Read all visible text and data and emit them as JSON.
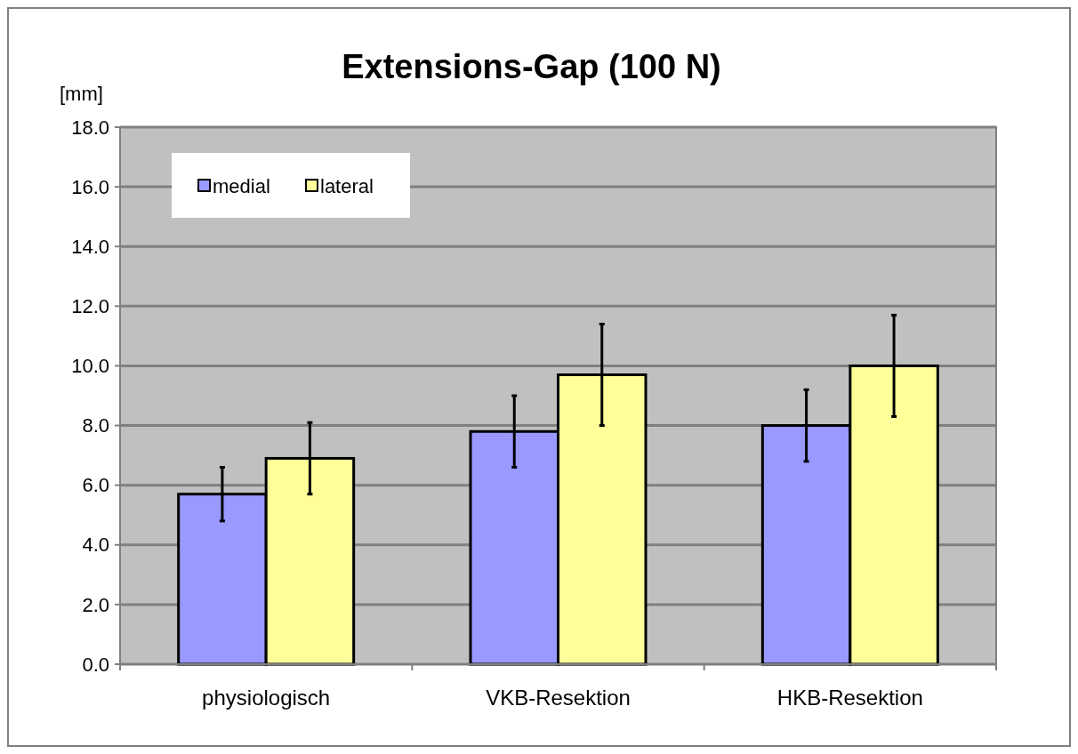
{
  "chart_data": {
    "type": "bar",
    "title": "Extensions-Gap (100 N)",
    "ylabel": "[mm]",
    "categories": [
      "physiologisch",
      "VKB-Resektion",
      "HKB-Resektion"
    ],
    "series": [
      {
        "name": "medial",
        "color": "#9999ff",
        "values": [
          5.7,
          7.8,
          8.0
        ],
        "errors": [
          0.9,
          1.2,
          1.2
        ]
      },
      {
        "name": "lateral",
        "color": "#ffff99",
        "values": [
          6.9,
          9.7,
          10.0
        ],
        "errors": [
          1.2,
          1.7,
          1.7
        ]
      }
    ],
    "ylim": [
      0,
      18
    ],
    "yticks": [
      {
        "value": 0,
        "label": "0.0"
      },
      {
        "value": 2,
        "label": "2.0"
      },
      {
        "value": 4,
        "label": "4.0"
      },
      {
        "value": 6,
        "label": "6.0"
      },
      {
        "value": 8,
        "label": "8.0"
      },
      {
        "value": 10,
        "label": "10.0"
      },
      {
        "value": 12,
        "label": "12.0"
      },
      {
        "value": 14,
        "label": "14.0"
      },
      {
        "value": 16,
        "label": "16.0"
      },
      {
        "value": 18,
        "label": "18.0"
      }
    ],
    "grid": "y",
    "legend": "top left"
  }
}
